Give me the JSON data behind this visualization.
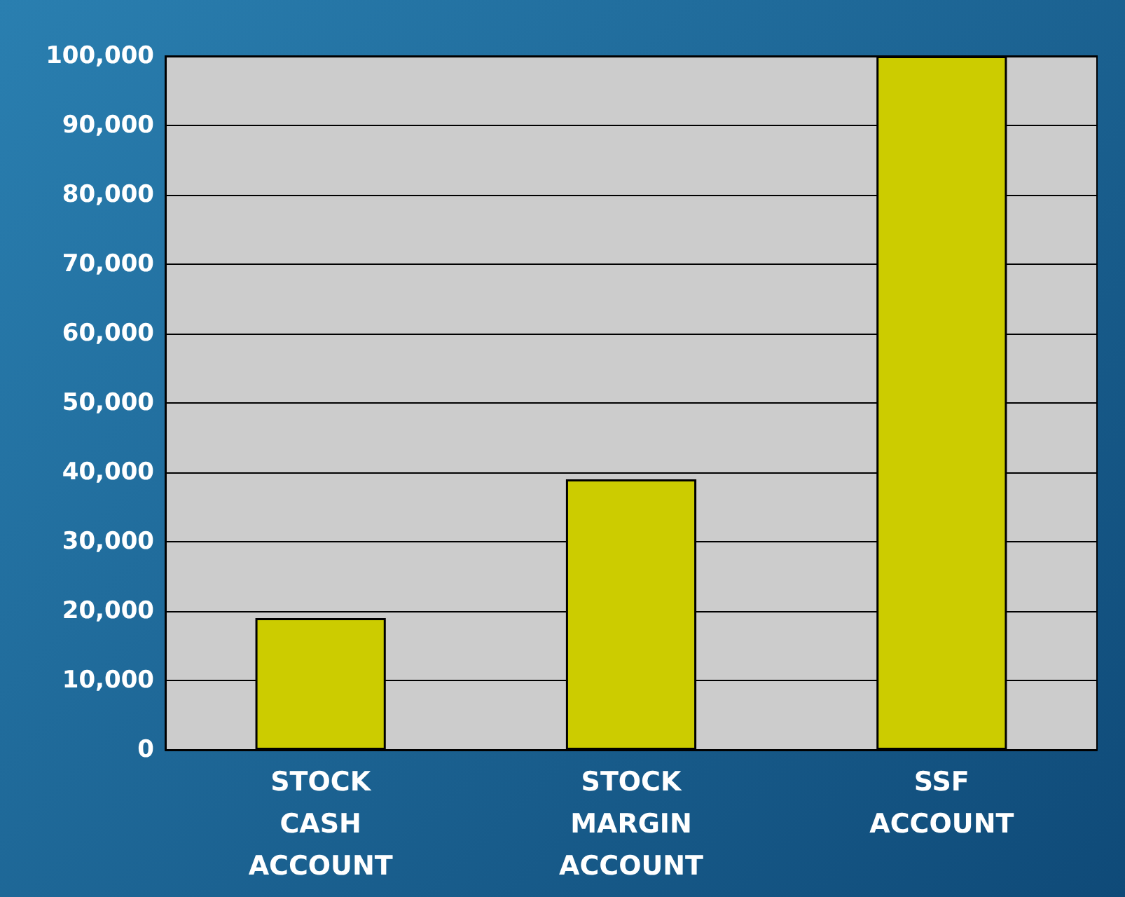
{
  "chart_data": {
    "type": "bar",
    "categories": [
      "STOCK\nCASH\nACCOUNT",
      "STOCK\nMARGIN\nACCOUNT",
      "SSF\nACCOUNT"
    ],
    "values": [
      19000,
      39000,
      100000
    ],
    "color": "#cccc00",
    "ylim": [
      0,
      100000
    ],
    "yticks": [
      0,
      {
        "value": 10000,
        "label": "10,000"
      },
      {
        "value": 20000,
        "label": "20,000"
      },
      {
        "value": 30000,
        "label": "30,000"
      },
      {
        "value": 40000,
        "label": "40,000"
      },
      {
        "value": 50000,
        "label": "50,000"
      },
      {
        "value": 60000,
        "label": "60,000"
      },
      {
        "value": 70000,
        "label": "70,000"
      },
      {
        "value": 80000,
        "label": "80,000"
      },
      {
        "value": 90000,
        "label": "90,000"
      },
      {
        "value": 100000,
        "label": "100,000"
      }
    ],
    "grid": "y"
  }
}
